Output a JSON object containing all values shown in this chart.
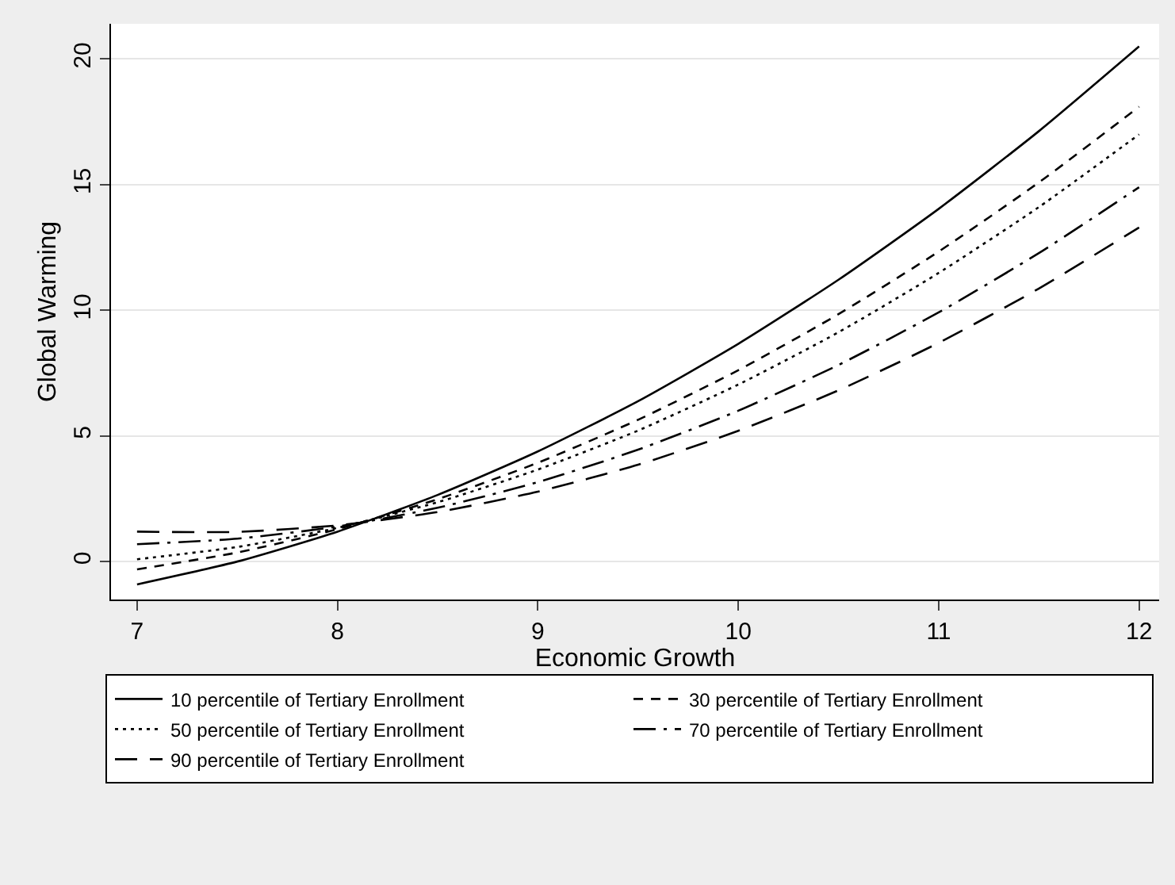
{
  "chart_data": {
    "type": "line",
    "xlabel": "Economic Growth",
    "ylabel": "Global Warming",
    "x": [
      7,
      7.5,
      8,
      8.5,
      9,
      9.5,
      10,
      10.5,
      11,
      11.5,
      12
    ],
    "xlim": [
      6.87,
      12.1
    ],
    "xticks": [
      7,
      8,
      9,
      10,
      11,
      12
    ],
    "ylim": [
      -1.5,
      21.4
    ],
    "yticks": [
      0,
      5,
      10,
      15,
      20
    ],
    "grid": "y",
    "legend": "bottom",
    "marker": "none",
    "series": [
      {
        "name": "10 percentile of Tertiary Enrollment",
        "color": "#000000",
        "line_style": "solid",
        "values": [
          -0.9,
          0.01,
          1.2,
          2.66,
          4.39,
          6.39,
          8.67,
          11.22,
          14.04,
          17.13,
          20.5
        ]
      },
      {
        "name": "30 percentile of Tertiary Enrollment",
        "color": "#000000",
        "line_style": "dashed",
        "values": [
          -0.3,
          0.37,
          1.3,
          2.49,
          3.94,
          5.65,
          7.62,
          9.85,
          12.34,
          15.09,
          18.1
        ]
      },
      {
        "name": "50 percentile of Tertiary Enrollment",
        "color": "#000000",
        "line_style": "dotted",
        "values": [
          0.1,
          0.59,
          1.35,
          2.37,
          3.67,
          5.22,
          7.05,
          9.13,
          11.49,
          14.11,
          17.0
        ]
      },
      {
        "name": "70 percentile of Tertiary Enrollment",
        "color": "#000000",
        "line_style": "dashdot",
        "values": [
          0.7,
          0.92,
          1.4,
          2.15,
          3.17,
          4.46,
          6.01,
          7.83,
          9.92,
          12.28,
          14.9
        ]
      },
      {
        "name": "90 percentile of Tertiary Enrollment",
        "color": "#000000",
        "line_style": "longdash",
        "values": [
          1.2,
          1.19,
          1.45,
          1.98,
          2.79,
          3.86,
          5.21,
          6.82,
          8.71,
          10.87,
          13.3
        ]
      }
    ]
  }
}
